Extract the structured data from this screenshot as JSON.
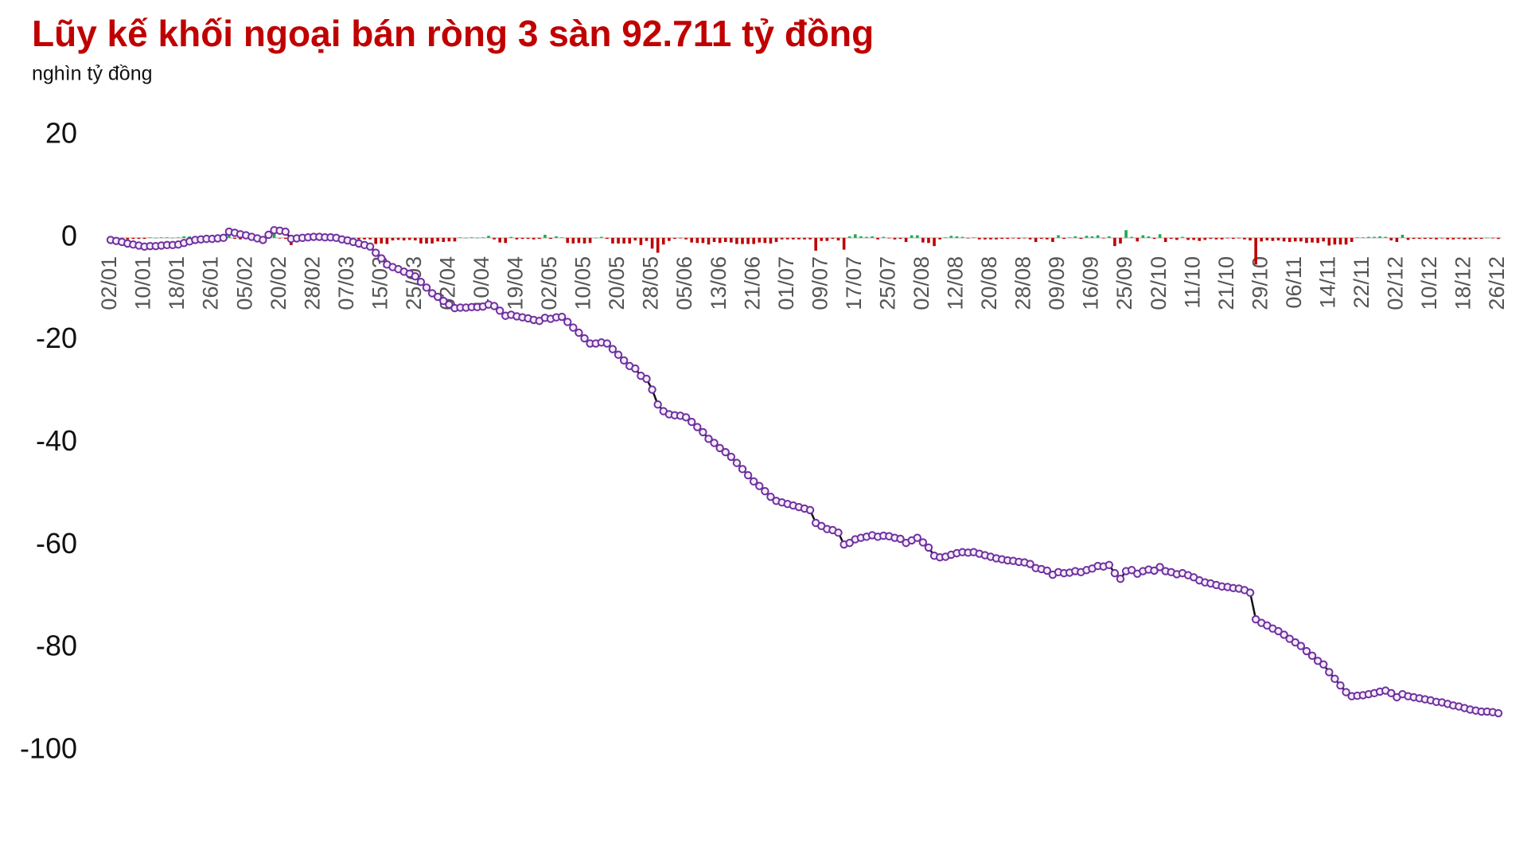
{
  "chart_data": {
    "type": "combo",
    "title": "Lũy kế khối ngoại bán ròng 3 sàn 92.711 tỷ đồng",
    "subtitle": "nghìn tỷ đồng",
    "ylim": [
      -100,
      20
    ],
    "yticks": [
      -100,
      -80,
      -60,
      -40,
      -20,
      0,
      20
    ],
    "categories": [
      "02/01",
      null,
      null,
      null,
      null,
      null,
      "10/01",
      null,
      null,
      null,
      null,
      null,
      "18/01",
      null,
      null,
      null,
      null,
      null,
      "26/01",
      null,
      null,
      null,
      null,
      null,
      "05/02",
      null,
      null,
      null,
      null,
      null,
      "20/02",
      null,
      null,
      null,
      null,
      null,
      "28/02",
      null,
      null,
      null,
      null,
      null,
      "07/03",
      null,
      null,
      null,
      null,
      null,
      "15/03",
      null,
      null,
      null,
      null,
      null,
      "25/03",
      null,
      null,
      null,
      null,
      null,
      "02/04",
      null,
      null,
      null,
      null,
      null,
      "10/04",
      null,
      null,
      null,
      null,
      null,
      "19/04",
      null,
      null,
      null,
      null,
      null,
      "02/05",
      null,
      null,
      null,
      null,
      null,
      "10/05",
      null,
      null,
      null,
      null,
      null,
      "20/05",
      null,
      null,
      null,
      null,
      null,
      "28/05",
      null,
      null,
      null,
      null,
      null,
      "05/06",
      null,
      null,
      null,
      null,
      null,
      "13/06",
      null,
      null,
      null,
      null,
      null,
      "21/06",
      null,
      null,
      null,
      null,
      null,
      "01/07",
      null,
      null,
      null,
      null,
      null,
      "09/07",
      null,
      null,
      null,
      null,
      null,
      "17/07",
      null,
      null,
      null,
      null,
      null,
      "25/07",
      null,
      null,
      null,
      null,
      null,
      "02/08",
      null,
      null,
      null,
      null,
      null,
      "12/08",
      null,
      null,
      null,
      null,
      null,
      "20/08",
      null,
      null,
      null,
      null,
      null,
      "28/08",
      null,
      null,
      null,
      null,
      null,
      "09/09",
      null,
      null,
      null,
      null,
      null,
      "16/09",
      null,
      null,
      null,
      null,
      null,
      "25/09",
      null,
      null,
      null,
      null,
      null,
      "02/10",
      null,
      null,
      null,
      null,
      null,
      "11/10",
      null,
      null,
      null,
      null,
      null,
      "21/10",
      null,
      null,
      null,
      null,
      null,
      "29/10",
      null,
      null,
      null,
      null,
      null,
      "06/11",
      null,
      null,
      null,
      null,
      null,
      "14/11",
      null,
      null,
      null,
      null,
      null,
      "22/11",
      null,
      null,
      null,
      null,
      null,
      "02/12",
      null,
      null,
      null,
      null,
      null,
      "10/12",
      null,
      null,
      null,
      null,
      null,
      "18/12",
      null,
      null,
      null,
      null,
      null,
      "26/12"
    ],
    "series": [
      {
        "type": "bar",
        "color_positive": "#1fa84f",
        "color_negative": "#c00000",
        "values": [
          -0.4,
          -0.2,
          -0.2,
          -0.3,
          -0.2,
          -0.2,
          -0.2,
          0.1,
          0,
          0.1,
          0.1,
          0,
          0.1,
          0.3,
          0.3,
          0.3,
          0.1,
          0.1,
          0,
          0.1,
          0.1,
          1.2,
          -0.2,
          -0.3,
          -0.2,
          -0.3,
          -0.3,
          -0.3,
          1.0,
          0.9,
          -0.1,
          -0.2,
          -1.4,
          0.1,
          0.1,
          0.1,
          0.1,
          0,
          -0.1,
          0,
          -0.1,
          -0.3,
          -0.2,
          -0.3,
          -0.3,
          -0.3,
          -0.3,
          -1.2,
          -1.1,
          -1.2,
          -0.5,
          -0.4,
          -0.5,
          -0.4,
          -0.5,
          -1.1,
          -1.1,
          -1.1,
          -0.7,
          -0.8,
          -0.7,
          -0.7,
          0.1,
          0,
          0.1,
          0,
          0.1,
          0.4,
          -0.3,
          -0.9,
          -1.0,
          0.2,
          -0.3,
          -0.2,
          -0.2,
          -0.3,
          -0.2,
          0.6,
          -0.2,
          0.3,
          0.1,
          -1.0,
          -1.1,
          -1.0,
          -1.1,
          -1.0,
          0,
          0.2,
          -0.2,
          -1.1,
          -1.1,
          -1.1,
          -1.1,
          -0.5,
          -1.4,
          -0.6,
          -2.1,
          -2.9,
          -1.3,
          -0.6,
          -0.2,
          -0.1,
          -0.3,
          -0.9,
          -1.0,
          -1.0,
          -1.3,
          -0.8,
          -1.0,
          -0.8,
          -0.9,
          -1.2,
          -1.2,
          -1.2,
          -1.2,
          -0.9,
          -1.0,
          -1.1,
          -0.8,
          -0.3,
          -0.3,
          -0.3,
          -0.3,
          -0.3,
          -0.3,
          -2.5,
          -0.6,
          -0.6,
          -0.2,
          -0.5,
          -2.3,
          0.3,
          0.7,
          0.3,
          0.2,
          0.3,
          -0.3,
          0.2,
          -0.1,
          -0.3,
          -0.2,
          -0.8,
          0.5,
          0.5,
          -0.9,
          -1.0,
          -1.6,
          -0.3,
          0.1,
          0.4,
          0.3,
          0.2,
          -0.1,
          0.1,
          -0.3,
          -0.3,
          -0.3,
          -0.3,
          -0.2,
          -0.2,
          -0.1,
          -0.2,
          -0.1,
          -0.3,
          -0.8,
          -0.2,
          -0.3,
          -0.8,
          0.5,
          -0.2,
          0.1,
          0.3,
          -0.2,
          0.4,
          0.3,
          0.5,
          -0.1,
          0.3,
          -1.6,
          -1.1,
          1.5,
          0.2,
          -0.7,
          0.5,
          0.3,
          -0.2,
          0.7,
          -0.8,
          -0.2,
          -0.4,
          0.2,
          -0.4,
          -0.4,
          -0.6,
          -0.4,
          -0.2,
          -0.3,
          -0.3,
          -0.1,
          -0.2,
          -0.1,
          -0.3,
          -0.5,
          -5.2,
          -0.7,
          -0.5,
          -0.6,
          -0.5,
          -0.7,
          -0.8,
          -0.7,
          -0.7,
          -1.0,
          -0.9,
          -1.0,
          -0.7,
          -1.5,
          -1.3,
          -1.3,
          -1.3,
          -0.8,
          0.1,
          0.1,
          0.2,
          0.2,
          0.3,
          0.2,
          -0.5,
          -0.8,
          0.6,
          -0.4,
          -0.2,
          -0.2,
          -0.2,
          -0.2,
          -0.3,
          -0.1,
          -0.3,
          -0.3,
          -0.2,
          -0.3,
          -0.3,
          -0.2,
          -0.2,
          0,
          -0.1,
          -0.211
        ]
      },
      {
        "type": "line",
        "color": "#7030a0",
        "line_color": "#111111",
        "values": [
          -0.4,
          -0.6,
          -0.8,
          -1.1,
          -1.3,
          -1.5,
          -1.7,
          -1.6,
          -1.6,
          -1.5,
          -1.4,
          -1.4,
          -1.3,
          -1.0,
          -0.7,
          -0.4,
          -0.3,
          -0.2,
          -0.2,
          -0.1,
          0,
          1.2,
          1.0,
          0.7,
          0.5,
          0.2,
          -0.1,
          -0.4,
          0.6,
          1.5,
          1.4,
          1.2,
          -0.2,
          -0.1,
          0,
          0.1,
          0.2,
          0.2,
          0.1,
          0.1,
          0,
          -0.3,
          -0.5,
          -0.8,
          -1.1,
          -1.4,
          -1.7,
          -2.9,
          -4.0,
          -5.2,
          -5.7,
          -6.1,
          -6.6,
          -7.0,
          -7.5,
          -8.6,
          -9.7,
          -10.8,
          -11.5,
          -12.3,
          -13.0,
          -13.7,
          -13.6,
          -13.6,
          -13.5,
          -13.5,
          -13.4,
          -13.0,
          -13.3,
          -14.2,
          -15.2,
          -15.0,
          -15.3,
          -15.5,
          -15.7,
          -16.0,
          -16.2,
          -15.6,
          -15.8,
          -15.5,
          -15.4,
          -16.4,
          -17.5,
          -18.5,
          -19.6,
          -20.6,
          -20.6,
          -20.4,
          -20.6,
          -21.7,
          -22.8,
          -23.9,
          -25.0,
          -25.5,
          -26.9,
          -27.5,
          -29.6,
          -32.5,
          -33.8,
          -34.4,
          -34.6,
          -34.7,
          -35.0,
          -35.9,
          -36.9,
          -37.9,
          -39.2,
          -40.0,
          -41.0,
          -41.8,
          -42.7,
          -43.9,
          -45.1,
          -46.3,
          -47.5,
          -48.4,
          -49.4,
          -50.5,
          -51.3,
          -51.6,
          -51.9,
          -52.2,
          -52.5,
          -52.8,
          -53.1,
          -55.6,
          -56.2,
          -56.8,
          -57.0,
          -57.5,
          -59.8,
          -59.5,
          -58.8,
          -58.5,
          -58.3,
          -58.0,
          -58.3,
          -58.1,
          -58.2,
          -58.5,
          -58.7,
          -59.5,
          -59.0,
          -58.5,
          -59.4,
          -60.4,
          -62.0,
          -62.3,
          -62.2,
          -61.8,
          -61.5,
          -61.3,
          -61.4,
          -61.3,
          -61.6,
          -61.9,
          -62.2,
          -62.5,
          -62.7,
          -62.9,
          -63.0,
          -63.2,
          -63.3,
          -63.6,
          -64.4,
          -64.6,
          -64.9,
          -65.7,
          -65.2,
          -65.4,
          -65.3,
          -65.0,
          -65.2,
          -64.8,
          -64.5,
          -64.0,
          -64.1,
          -63.8,
          -65.4,
          -66.5,
          -65.0,
          -64.8,
          -65.5,
          -65.0,
          -64.7,
          -64.9,
          -64.2,
          -65.0,
          -65.2,
          -65.6,
          -65.4,
          -65.8,
          -66.2,
          -66.8,
          -67.2,
          -67.4,
          -67.7,
          -68.0,
          -68.1,
          -68.3,
          -68.4,
          -68.7,
          -69.2,
          -74.4,
          -75.1,
          -75.6,
          -76.2,
          -76.7,
          -77.4,
          -78.2,
          -78.9,
          -79.6,
          -80.6,
          -81.5,
          -82.5,
          -83.2,
          -84.7,
          -86.0,
          -87.3,
          -88.6,
          -89.4,
          -89.3,
          -89.2,
          -89.0,
          -88.8,
          -88.5,
          -88.3,
          -88.8,
          -89.6,
          -89.0,
          -89.4,
          -89.6,
          -89.8,
          -90.0,
          -90.2,
          -90.5,
          -90.6,
          -90.9,
          -91.2,
          -91.4,
          -91.7,
          -92.0,
          -92.2,
          -92.4,
          -92.4,
          -92.5,
          -92.711
        ]
      }
    ]
  }
}
